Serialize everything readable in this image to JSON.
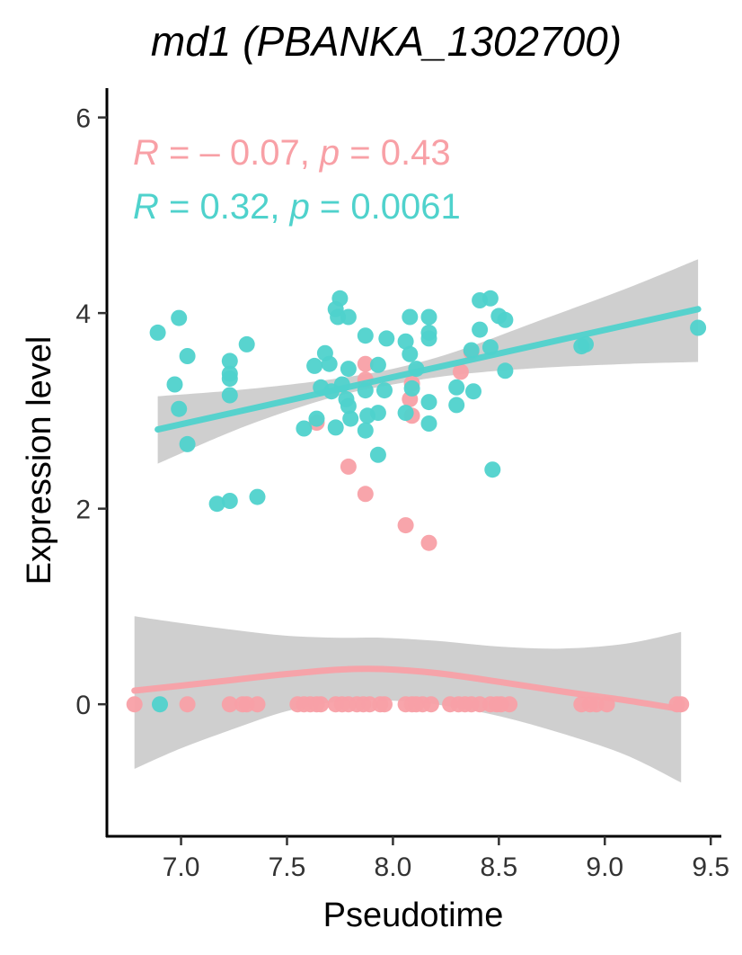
{
  "chart_data": {
    "type": "scatter",
    "title": "md1 (PBANKA_1302700)",
    "xlabel": "Pseudotime",
    "ylabel": "Expression level",
    "xlim": [
      6.65,
      9.55
    ],
    "ylim": [
      -1.35,
      6.3
    ],
    "x_ticks": [
      7.0,
      7.5,
      8.0,
      8.5,
      9.0,
      9.5
    ],
    "x_tick_labels": [
      "7.0",
      "7.5",
      "8.0",
      "8.5",
      "9.0",
      "9.5"
    ],
    "y_ticks": [
      0,
      2,
      4,
      6
    ],
    "y_tick_labels": [
      "0",
      "2",
      "4",
      "6"
    ],
    "grid": false,
    "legend": "none",
    "annotations": [
      {
        "r_label": "R",
        "r_text": " = – 0.07, ",
        "p_label": "p",
        "p_text": " = 0.43",
        "color": "#f8a0a6"
      },
      {
        "r_label": "R",
        "r_text": " = 0.32, ",
        "p_label": "p",
        "p_text": " = 0.0061",
        "color": "#4fd2cc"
      }
    ],
    "series": [
      {
        "color": "#f8a0a6",
        "points": [
          [
            6.78,
            0
          ],
          [
            7.03,
            0
          ],
          [
            7.23,
            0
          ],
          [
            7.29,
            0
          ],
          [
            7.31,
            0
          ],
          [
            7.36,
            0
          ],
          [
            7.55,
            0
          ],
          [
            7.58,
            0
          ],
          [
            7.61,
            0
          ],
          [
            7.64,
            0
          ],
          [
            7.66,
            0
          ],
          [
            7.73,
            0
          ],
          [
            7.76,
            0
          ],
          [
            7.79,
            0
          ],
          [
            7.83,
            0
          ],
          [
            7.86,
            0
          ],
          [
            7.89,
            0
          ],
          [
            7.94,
            0
          ],
          [
            7.96,
            0
          ],
          [
            8.06,
            0
          ],
          [
            8.09,
            0
          ],
          [
            8.11,
            0
          ],
          [
            8.14,
            0
          ],
          [
            8.18,
            0
          ],
          [
            8.27,
            0
          ],
          [
            8.31,
            0
          ],
          [
            8.34,
            0
          ],
          [
            8.37,
            0
          ],
          [
            8.41,
            0
          ],
          [
            8.46,
            0
          ],
          [
            8.49,
            0
          ],
          [
            8.51,
            0
          ],
          [
            8.55,
            0
          ],
          [
            8.89,
            0
          ],
          [
            8.93,
            0
          ],
          [
            8.96,
            0
          ],
          [
            9.01,
            0
          ],
          [
            9.34,
            0
          ],
          [
            9.36,
            0
          ],
          [
            7.87,
            3.48
          ],
          [
            7.87,
            3.32
          ],
          [
            8.09,
            3.28
          ],
          [
            8.08,
            3.12
          ],
          [
            8.09,
            2.95
          ],
          [
            7.79,
            2.43
          ],
          [
            7.87,
            2.15
          ],
          [
            8.06,
            1.83
          ],
          [
            8.17,
            1.65
          ],
          [
            7.64,
            2.88
          ],
          [
            8.32,
            3.4
          ],
          [
            8.37,
            3.6
          ]
        ],
        "fit": {
          "type": "loess",
          "points": [
            [
              6.78,
              0.14
            ],
            [
              7.0,
              0.19
            ],
            [
              7.25,
              0.25
            ],
            [
              7.5,
              0.31
            ],
            [
              7.75,
              0.355
            ],
            [
              7.95,
              0.36
            ],
            [
              8.2,
              0.32
            ],
            [
              8.5,
              0.23
            ],
            [
              8.8,
              0.13
            ],
            [
              9.1,
              0.04
            ],
            [
              9.36,
              -0.05
            ]
          ],
          "ci_lower": [
            [
              6.78,
              -0.66
            ],
            [
              7.0,
              -0.45
            ],
            [
              7.25,
              -0.25
            ],
            [
              7.5,
              -0.07
            ],
            [
              7.75,
              0.03
            ],
            [
              7.95,
              0.04
            ],
            [
              8.2,
              0.0
            ],
            [
              8.5,
              -0.12
            ],
            [
              8.8,
              -0.3
            ],
            [
              9.1,
              -0.52
            ],
            [
              9.36,
              -0.8
            ]
          ],
          "ci_upper": [
            [
              6.78,
              0.9
            ],
            [
              7.0,
              0.83
            ],
            [
              7.25,
              0.76
            ],
            [
              7.5,
              0.7
            ],
            [
              7.75,
              0.68
            ],
            [
              7.95,
              0.68
            ],
            [
              8.2,
              0.65
            ],
            [
              8.5,
              0.59
            ],
            [
              8.8,
              0.57
            ],
            [
              9.1,
              0.62
            ],
            [
              9.36,
              0.74
            ]
          ]
        }
      },
      {
        "color": "#4fd2cc",
        "points": [
          [
            6.89,
            3.8
          ],
          [
            6.97,
            3.27
          ],
          [
            6.99,
            3.02
          ],
          [
            6.99,
            3.95
          ],
          [
            7.03,
            3.56
          ],
          [
            7.03,
            2.66
          ],
          [
            7.17,
            2.05
          ],
          [
            7.23,
            2.08
          ],
          [
            7.23,
            3.16
          ],
          [
            7.23,
            3.33
          ],
          [
            7.23,
            3.38
          ],
          [
            7.23,
            3.51
          ],
          [
            7.31,
            3.68
          ],
          [
            7.36,
            2.12
          ],
          [
            6.9,
            0
          ],
          [
            7.58,
            2.82
          ],
          [
            7.63,
            3.46
          ],
          [
            7.64,
            2.92
          ],
          [
            7.66,
            3.24
          ],
          [
            7.68,
            3.59
          ],
          [
            7.7,
            3.48
          ],
          [
            7.71,
            3.2
          ],
          [
            7.73,
            4.04
          ],
          [
            7.73,
            2.83
          ],
          [
            7.74,
            3.96
          ],
          [
            7.75,
            4.15
          ],
          [
            7.76,
            3.27
          ],
          [
            7.78,
            3.12
          ],
          [
            7.79,
            3.43
          ],
          [
            7.79,
            3.96
          ],
          [
            7.79,
            3.05
          ],
          [
            7.8,
            2.92
          ],
          [
            7.87,
            3.77
          ],
          [
            7.87,
            3.21
          ],
          [
            7.87,
            2.8
          ],
          [
            7.88,
            2.95
          ],
          [
            7.93,
            3.47
          ],
          [
            7.93,
            2.98
          ],
          [
            7.93,
            2.55
          ],
          [
            7.96,
            3.21
          ],
          [
            7.97,
            3.74
          ],
          [
            8.06,
            3.71
          ],
          [
            8.06,
            2.98
          ],
          [
            8.08,
            3.96
          ],
          [
            8.08,
            3.58
          ],
          [
            8.09,
            3.23
          ],
          [
            8.11,
            3.43
          ],
          [
            8.17,
            3.96
          ],
          [
            8.17,
            3.8
          ],
          [
            8.17,
            3.74
          ],
          [
            8.17,
            3.09
          ],
          [
            8.17,
            2.87
          ],
          [
            8.3,
            3.24
          ],
          [
            8.3,
            3.06
          ],
          [
            8.37,
            3.62
          ],
          [
            8.38,
            3.2
          ],
          [
            8.41,
            3.83
          ],
          [
            8.41,
            4.13
          ],
          [
            8.46,
            4.15
          ],
          [
            8.46,
            3.65
          ],
          [
            8.47,
            2.4
          ],
          [
            8.5,
            3.97
          ],
          [
            8.53,
            3.41
          ],
          [
            8.53,
            3.93
          ],
          [
            8.89,
            3.66
          ],
          [
            8.91,
            3.68
          ],
          [
            9.44,
            3.85
          ]
        ],
        "fit": {
          "type": "linear",
          "points": [
            [
              6.89,
              2.81
            ],
            [
              9.44,
              4.04
            ]
          ],
          "ci_lower": [
            [
              6.89,
              2.46
            ],
            [
              7.3,
              2.84
            ],
            [
              7.7,
              3.13
            ],
            [
              8.0,
              3.27
            ],
            [
              8.3,
              3.37
            ],
            [
              8.7,
              3.44
            ],
            [
              9.1,
              3.48
            ],
            [
              9.44,
              3.5
            ]
          ],
          "ci_upper": [
            [
              6.89,
              3.15
            ],
            [
              7.3,
              3.22
            ],
            [
              7.7,
              3.32
            ],
            [
              8.0,
              3.43
            ],
            [
              8.3,
              3.61
            ],
            [
              8.7,
              3.93
            ],
            [
              9.1,
              4.25
            ],
            [
              9.44,
              4.55
            ]
          ]
        }
      }
    ]
  }
}
